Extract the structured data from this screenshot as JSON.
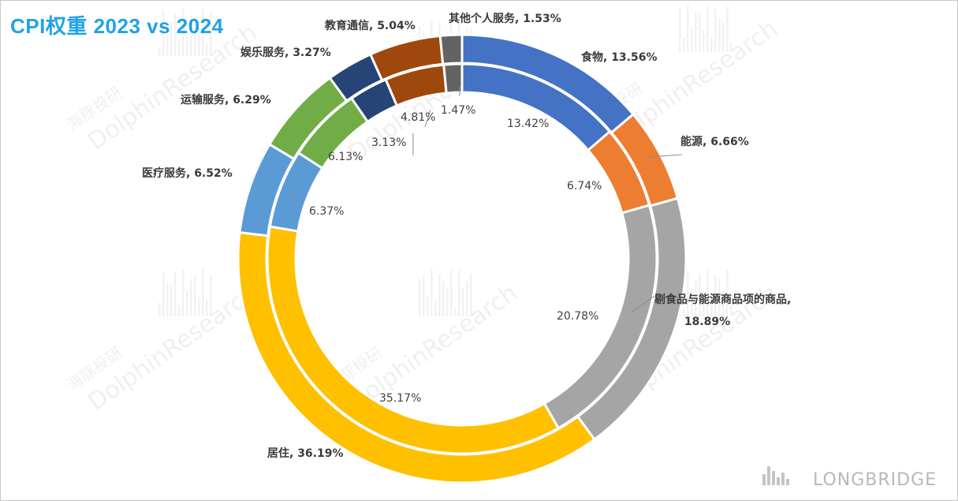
{
  "title": "CPI权重 2023 vs 2024",
  "chart_data": {
    "type": "doughnut",
    "title": "CPI权重 2023 vs 2024",
    "series": [
      {
        "ring": "outer",
        "categories": [
          "食物",
          "能源",
          "剔食品与能源商品项的商品",
          "居住",
          "医疗服务",
          "运输服务",
          "娱乐服务",
          "教育通信",
          "其他个人服务"
        ],
        "values": [
          13.56,
          6.66,
          18.89,
          36.19,
          6.52,
          6.29,
          3.27,
          5.04,
          1.53
        ]
      },
      {
        "ring": "inner",
        "categories": [
          "食物",
          "能源",
          "剔食品与能源商品项的商品",
          "居住",
          "医疗服务",
          "运输服务",
          "娱乐服务",
          "教育通信",
          "其他个人服务"
        ],
        "values": [
          13.42,
          6.74,
          20.78,
          35.17,
          6.37,
          6.13,
          3.13,
          4.81,
          1.47
        ]
      }
    ],
    "outer_labels": [
      "食物, 13.56%",
      "能源, 6.66%",
      "剔食品与能源商品项的商品,",
      "18.89%",
      "居住, 36.19%",
      "医疗服务, 6.52%",
      "运输服务, 6.29%",
      "娱乐服务, 3.27%",
      "教育通信, 5.04%",
      "其他个人服务, 1.53%"
    ],
    "inner_labels": [
      "13.42%",
      "6.74%",
      "20.78%",
      "35.17%",
      "6.37%",
      "6.13%",
      "3.13%",
      "4.81%",
      "1.47%"
    ],
    "colors": [
      "#4472C4",
      "#ED7D31",
      "#A5A5A5",
      "#FFC000",
      "#5B9BD5",
      "#70AD47",
      "#264478",
      "#9E480E",
      "#636363"
    ],
    "legend": "none"
  },
  "watermark": {
    "en": "DolphinResearch",
    "cn": "海豚投研"
  },
  "brand": "LONGBRIDGE"
}
